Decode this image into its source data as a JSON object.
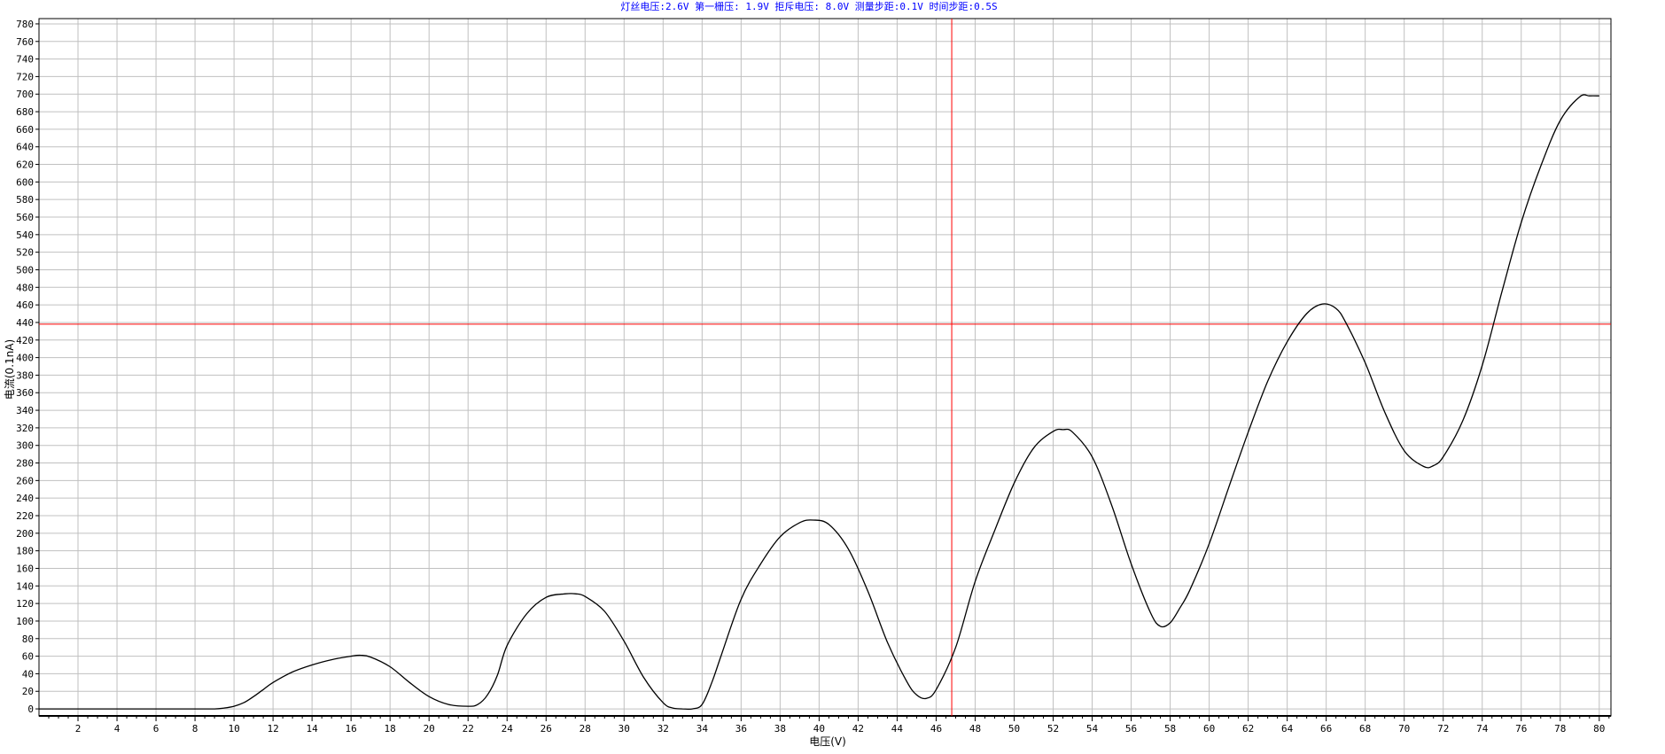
{
  "chart_data": {
    "type": "line",
    "title": "灯丝电压:2.6V  第一栅压: 1.9V  拒斥电压: 8.0V  测量步距:0.1V  时间步距:0.5S",
    "xlabel": "电压(V)",
    "ylabel": "电流(0.1nA)",
    "xlim": [
      0,
      80.6
    ],
    "ylim": [
      -8,
      786
    ],
    "x_ticks": [
      2,
      4,
      6,
      8,
      10,
      12,
      14,
      16,
      18,
      20,
      22,
      24,
      26,
      28,
      30,
      32,
      34,
      36,
      38,
      40,
      42,
      44,
      46,
      48,
      50,
      52,
      54,
      56,
      58,
      60,
      62,
      64,
      66,
      68,
      70,
      72,
      74,
      76,
      78,
      80
    ],
    "y_ticks": [
      0,
      20,
      40,
      60,
      80,
      100,
      120,
      140,
      160,
      180,
      200,
      220,
      240,
      260,
      280,
      300,
      320,
      340,
      360,
      380,
      400,
      420,
      440,
      460,
      480,
      500,
      520,
      540,
      560,
      580,
      600,
      620,
      640,
      660,
      680,
      700,
      720,
      740,
      760,
      780
    ],
    "grid": true,
    "colors": {
      "line": "#000000",
      "grid": "#c0c0c0",
      "cursor": "#ff0000",
      "title": "#0000ff"
    },
    "cursor": {
      "x": 46.8,
      "y": 438
    },
    "series": [
      {
        "x": [
          0,
          2,
          4,
          6,
          8,
          9,
          9.5,
          10,
          10.5,
          11,
          11.5,
          12,
          13,
          14,
          15,
          16,
          16.5,
          17,
          18,
          19,
          20,
          21,
          22,
          22.5,
          23,
          23.5,
          24,
          25,
          26,
          27,
          27.5,
          28,
          29,
          30,
          31,
          32,
          32.5,
          33,
          33.5,
          34,
          34.5,
          35,
          36,
          37,
          38,
          39,
          39.7,
          40.5,
          41.5,
          42.5,
          43.5,
          44.5,
          45,
          45.5,
          46,
          47,
          48,
          49,
          50,
          51,
          52,
          52.5,
          53,
          54,
          55,
          56,
          57,
          57.5,
          58,
          58.5,
          59,
          60,
          61,
          62,
          63,
          64,
          65,
          65.8,
          66.5,
          67,
          68,
          69,
          70,
          71,
          71.5,
          72,
          73,
          74,
          75,
          76,
          77,
          78,
          79,
          79.5,
          80
        ],
        "y": [
          0,
          0,
          0,
          0,
          0,
          0,
          1,
          3,
          7,
          14,
          22,
          30,
          42,
          50,
          56,
          60,
          61,
          59,
          48,
          30,
          14,
          5,
          3,
          5,
          16,
          38,
          72,
          108,
          127,
          131,
          131,
          128,
          111,
          77,
          36,
          7,
          1,
          0,
          0,
          5,
          30,
          62,
          125,
          165,
          196,
          212,
          215,
          210,
          182,
          134,
          76,
          31,
          16,
          12,
          22,
          70,
          145,
          203,
          257,
          297,
          316,
          318,
          315,
          287,
          232,
          165,
          109,
          94,
          98,
          115,
          135,
          188,
          252,
          315,
          373,
          418,
          450,
          461,
          456,
          440,
          394,
          338,
          294,
          276,
          277,
          287,
          328,
          391,
          474,
          554,
          618,
          670,
          697,
          698,
          698
        ]
      }
    ]
  }
}
